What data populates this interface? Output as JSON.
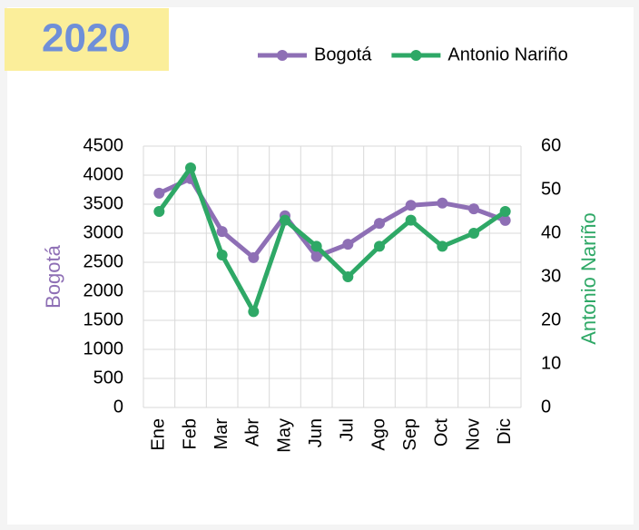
{
  "chart_data": {
    "type": "line",
    "title": "2020",
    "categories": [
      "Ene",
      "Feb",
      "Mar",
      "Abr",
      "May",
      "Jun",
      "Jul",
      "Ago",
      "Sep",
      "Oct",
      "Nov",
      "Dic"
    ],
    "series": [
      {
        "name": "Bogotá",
        "color": "#8e6fb5",
        "values": [
          3690,
          3940,
          3030,
          2580,
          3300,
          2600,
          2810,
          3170,
          3480,
          3520,
          3420,
          3220
        ]
      },
      {
        "name": "Antonio Nariño",
        "color": "#2ea866",
        "axis": "y2",
        "values": [
          45,
          55,
          35,
          22,
          43,
          37,
          30,
          37,
          43,
          37,
          40,
          45
        ]
      }
    ],
    "ylabel": "Bogotá",
    "y2label": "Antonio Nariño",
    "ylim": [
      0,
      4500
    ],
    "yticks": [
      0,
      500,
      1000,
      1500,
      2000,
      2500,
      3000,
      3500,
      4000,
      4500
    ],
    "y2lim": [
      0,
      60
    ],
    "y2ticks": [
      0,
      10,
      20,
      30,
      40,
      50,
      60
    ],
    "grid": true,
    "legend": "top-right"
  }
}
